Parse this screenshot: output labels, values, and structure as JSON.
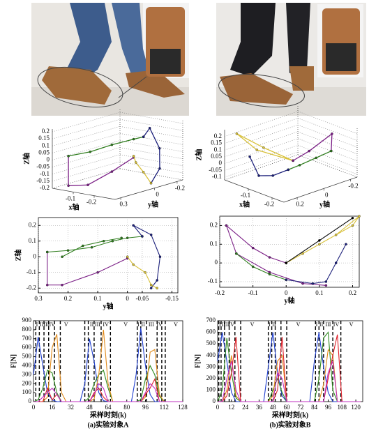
{
  "chart_data": [
    {
      "type": "line3d",
      "xlabel": "x轴",
      "ylabel": "y轴",
      "zlabel": "Z轴",
      "xlim": [
        0,
        -0.3
      ],
      "ylim": [
        0.35,
        -0.25
      ],
      "zlim": [
        -0.2,
        0.22
      ],
      "xticks": [
        -0.1,
        -0.2
      ],
      "yticks": [
        0.3,
        0,
        -0.2
      ],
      "zticks": [
        0.2,
        0.15,
        0.1,
        0.05,
        0,
        -0.05,
        -0.1,
        -0.15,
        -0.2
      ],
      "grid": true,
      "series": [
        {
          "color": "#7b1f86",
          "x": [
            -0.05,
            -0.05,
            -0.1,
            -0.15,
            -0.2
          ],
          "y": [
            0.3,
            0.3,
            0.22,
            0.1,
            0.0
          ],
          "z": [
            0.03,
            -0.18,
            -0.18,
            -0.1,
            -0.01
          ]
        },
        {
          "color": "#2f7d1e",
          "x": [
            -0.05,
            -0.1,
            -0.15,
            -0.2,
            -0.22
          ],
          "y": [
            0.3,
            0.2,
            0.1,
            0.0,
            -0.05
          ],
          "z": [
            0.03,
            0.05,
            0.09,
            0.12,
            0.13
          ]
        },
        {
          "color": "#1b1f7a",
          "x": [
            -0.22,
            -0.25,
            -0.27,
            -0.26,
            -0.24
          ],
          "y": [
            -0.05,
            -0.05,
            -0.1,
            -0.12,
            -0.08
          ],
          "z": [
            0.13,
            0.2,
            0.05,
            -0.1,
            -0.2
          ]
        },
        {
          "color": "#d8c13a",
          "x": [
            -0.24,
            -0.22,
            -0.2,
            -0.2
          ],
          "y": [
            -0.08,
            -0.05,
            -0.02,
            0.0
          ],
          "z": [
            -0.2,
            -0.12,
            -0.05,
            0.0
          ]
        }
      ]
    },
    {
      "type": "line3d",
      "xlabel": "x轴",
      "ylabel": "y轴",
      "zlabel": "Z轴",
      "xlim": [
        0,
        -0.25
      ],
      "ylim": [
        0.3,
        -0.25
      ],
      "zlim": [
        -0.12,
        0.25
      ],
      "xticks": [
        -0.1,
        -0.2
      ],
      "yticks": [
        0.2,
        0,
        -0.2
      ],
      "zticks": [
        0.2,
        0.15,
        0.1,
        0.05,
        0,
        -0.05,
        -0.1
      ],
      "grid": true,
      "series": [
        {
          "color": "#d8c13a",
          "x": [
            -0.12,
            -0.08,
            -0.04,
            -0.08,
            -0.12
          ],
          "y": [
            0.0,
            0.2,
            0.28,
            0.15,
            0.0
          ],
          "z": [
            0.0,
            0.12,
            0.24,
            0.12,
            0.0
          ]
        },
        {
          "color": "#7b1f86",
          "x": [
            -0.12,
            -0.16,
            -0.2,
            -0.18
          ],
          "y": [
            0.0,
            -0.05,
            -0.15,
            -0.18
          ],
          "z": [
            0.0,
            0.08,
            0.2,
            0.05
          ]
        },
        {
          "color": "#2f7d1e",
          "x": [
            -0.18,
            -0.15,
            -0.12,
            -0.1
          ],
          "y": [
            -0.18,
            -0.12,
            -0.05,
            0.0
          ],
          "z": [
            0.05,
            0.0,
            -0.05,
            -0.08
          ]
        },
        {
          "color": "#1b1f7a",
          "x": [
            -0.1,
            -0.08,
            -0.06,
            -0.05
          ],
          "y": [
            0.0,
            0.08,
            0.15,
            0.2
          ],
          "z": [
            -0.08,
            -0.11,
            -0.1,
            0.05
          ]
        }
      ]
    },
    {
      "type": "line",
      "xlabel": "y轴",
      "ylabel": "Z轴",
      "xlim": [
        0.3,
        -0.17
      ],
      "ylim": [
        -0.23,
        0.25
      ],
      "xticks": [
        0.3,
        0.2,
        0.1,
        0,
        -0.05,
        -0.15
      ],
      "yticks": [
        -0.2,
        -0.1,
        0,
        0.1,
        0.2
      ],
      "grid": true,
      "markers": true,
      "series": [
        {
          "color": "#7b1f86",
          "x": [
            0.27,
            0.27,
            0.22,
            0.1,
            0.0
          ],
          "values": [
            0.03,
            -0.18,
            -0.18,
            -0.1,
            -0.01
          ]
        },
        {
          "color": "#2f7d1e",
          "x": [
            0.27,
            0.2,
            0.12,
            0.05,
            0.0,
            -0.05
          ],
          "values": [
            0.03,
            0.04,
            0.06,
            0.1,
            0.12,
            0.13
          ]
        },
        {
          "color": "#2f7d1e",
          "x": [
            0.22,
            0.15,
            0.08,
            0.02
          ],
          "values": [
            0.0,
            0.07,
            0.1,
            0.12
          ]
        },
        {
          "color": "#1b1f7a",
          "x": [
            -0.05,
            -0.02,
            -0.08,
            -0.11,
            -0.1,
            -0.08
          ],
          "values": [
            0.13,
            0.2,
            0.14,
            0.0,
            -0.15,
            -0.2
          ]
        },
        {
          "color": "#d8c13a",
          "x": [
            -0.1,
            -0.08,
            -0.06,
            -0.02,
            0.0
          ],
          "values": [
            -0.2,
            -0.18,
            -0.1,
            -0.05,
            0.0
          ]
        }
      ]
    },
    {
      "type": "line",
      "xlabel": "y轴",
      "xlim": [
        -0.2,
        0.22
      ],
      "ylim": [
        -0.13,
        0.25
      ],
      "xticks": [
        -0.2,
        -0.1,
        0,
        0.1,
        0.2
      ],
      "yticks": [
        -0.1,
        0,
        0.1,
        0.2
      ],
      "grid": true,
      "markers": true,
      "series": [
        {
          "color": "#7b1f86",
          "x": [
            -0.18,
            -0.1,
            -0.05,
            0.0
          ],
          "values": [
            0.2,
            0.08,
            0.03,
            0.0
          ]
        },
        {
          "color": "#7b1f86",
          "x": [
            -0.18,
            -0.15,
            -0.05,
            0.05,
            0.12
          ],
          "values": [
            0.2,
            0.05,
            -0.05,
            -0.11,
            -0.12
          ]
        },
        {
          "color": "#2f7d1e",
          "x": [
            -0.15,
            -0.1,
            -0.05,
            0.0
          ],
          "values": [
            0.05,
            -0.02,
            -0.06,
            -0.09
          ]
        },
        {
          "color": "#1b1f7a",
          "x": [
            0.0,
            0.08,
            0.12,
            0.15,
            0.18
          ],
          "values": [
            -0.09,
            -0.11,
            -0.1,
            0.0,
            0.1
          ]
        },
        {
          "color": "#d8c13a",
          "x": [
            0.0,
            0.1,
            0.2,
            0.22,
            0.15,
            0.05,
            0.0
          ],
          "values": [
            0.0,
            0.1,
            0.2,
            0.25,
            0.15,
            0.05,
            0.0
          ]
        },
        {
          "color": "#000000",
          "x": [
            0.0,
            0.1,
            0.2
          ],
          "values": [
            0.0,
            0.12,
            0.24
          ]
        }
      ]
    },
    {
      "type": "line",
      "xlabel": "采样时刻(k)",
      "ylabel": "F[N]",
      "caption": "(a)实验对象A",
      "xlim": [
        0,
        128
      ],
      "ylim": [
        0,
        900
      ],
      "xticks": [
        0,
        16,
        32,
        48,
        64,
        80,
        96,
        112,
        128
      ],
      "yticks": [
        0,
        100,
        200,
        300,
        400,
        500,
        600,
        700,
        800,
        900
      ],
      "x": [
        0,
        4,
        8,
        12,
        16,
        20,
        24,
        28,
        32,
        36,
        40,
        44,
        48,
        52,
        56,
        60,
        64,
        68,
        72,
        76,
        80,
        84,
        88,
        92,
        96,
        100,
        104,
        108,
        112,
        116,
        120,
        124,
        128
      ],
      "phase_lines": [
        2,
        5,
        9,
        13,
        18,
        23,
        44,
        47,
        52,
        58,
        66,
        89,
        92,
        97,
        106,
        110,
        113
      ],
      "phases": [
        {
          "label": "I",
          "x": 3
        },
        {
          "label": "II",
          "x": 7
        },
        {
          "label": "III",
          "x": 11
        },
        {
          "label": "IV",
          "x": 16
        },
        {
          "label": "V",
          "x": 28
        },
        {
          "label": "II",
          "x": 50
        },
        {
          "label": "III",
          "x": 55
        },
        {
          "label": "IV",
          "x": 62
        },
        {
          "label": "V",
          "x": 79
        },
        {
          "label": "I",
          "x": 90
        },
        {
          "label": "II",
          "x": 94
        },
        {
          "label": "III",
          "x": 101
        },
        {
          "label": "IV",
          "x": 108
        },
        {
          "label": "V",
          "x": 122
        }
      ],
      "series": [
        {
          "color": "#1f3fd0",
          "values": [
            300,
            720,
            400,
            100,
            20,
            0,
            0,
            0,
            0,
            0,
            0,
            200,
            700,
            450,
            100,
            10,
            0,
            0,
            0,
            0,
            0,
            0,
            300,
            820,
            400,
            80,
            0,
            0,
            0,
            0,
            0,
            0,
            0
          ]
        },
        {
          "color": "#2f8a1e",
          "values": [
            0,
            20,
            150,
            350,
            320,
            100,
            0,
            0,
            0,
            0,
            0,
            0,
            50,
            200,
            300,
            350,
            150,
            0,
            0,
            0,
            0,
            0,
            0,
            20,
            250,
            400,
            300,
            60,
            0,
            0,
            0,
            0,
            0
          ]
        },
        {
          "color": "#e08a1a",
          "values": [
            0,
            0,
            0,
            50,
            600,
            750,
            100,
            0,
            0,
            0,
            0,
            0,
            0,
            30,
            300,
            800,
            200,
            0,
            0,
            0,
            0,
            0,
            0,
            0,
            50,
            550,
            580,
            80,
            0,
            0,
            0,
            0,
            0
          ]
        },
        {
          "color": "#e0202a",
          "values": [
            0,
            0,
            0,
            150,
            20,
            80,
            0,
            0,
            0,
            0,
            0,
            0,
            0,
            100,
            150,
            50,
            0,
            0,
            0,
            0,
            0,
            0,
            0,
            0,
            80,
            150,
            250,
            0,
            0,
            0,
            0,
            0,
            0
          ]
        },
        {
          "color": "#c030c0",
          "values": [
            0,
            0,
            50,
            100,
            150,
            80,
            0,
            0,
            0,
            0,
            0,
            0,
            0,
            80,
            200,
            150,
            0,
            0,
            0,
            0,
            0,
            0,
            0,
            0,
            100,
            200,
            150,
            0,
            0,
            0,
            0,
            0,
            0
          ]
        }
      ]
    },
    {
      "type": "line",
      "xlabel": "采样时刻(k)",
      "ylabel": "F[N]",
      "caption": "(b)实验对象B",
      "xlim": [
        0,
        126
      ],
      "ylim": [
        0,
        700
      ],
      "xticks": [
        0,
        12,
        24,
        36,
        48,
        60,
        72,
        84,
        96,
        108,
        120
      ],
      "yticks": [
        0,
        100,
        200,
        300,
        400,
        500,
        600,
        700
      ],
      "x": [
        0,
        4,
        8,
        12,
        16,
        20,
        24,
        28,
        32,
        36,
        40,
        44,
        48,
        52,
        56,
        60,
        64,
        68,
        72,
        76,
        80,
        84,
        88,
        92,
        96,
        100,
        104,
        108,
        112,
        116,
        120,
        124
      ],
      "phase_lines": [
        1,
        3,
        6,
        10,
        15,
        20,
        44,
        47,
        50,
        55,
        60,
        85,
        88,
        92,
        100,
        107
      ],
      "phases": [
        {
          "label": "I",
          "x": 2
        },
        {
          "label": "II",
          "x": 5
        },
        {
          "label": "III",
          "x": 8
        },
        {
          "label": "IV",
          "x": 12
        },
        {
          "label": "V",
          "x": 30
        },
        {
          "label": "I",
          "x": 45
        },
        {
          "label": "II",
          "x": 49
        },
        {
          "label": "V",
          "x": 70
        },
        {
          "label": "I",
          "x": 86
        },
        {
          "label": "II",
          "x": 90
        },
        {
          "label": "III",
          "x": 96
        },
        {
          "label": "IV",
          "x": 103
        },
        {
          "label": "V",
          "x": 116
        }
      ],
      "series": [
        {
          "color": "#1f3fd0",
          "values": [
            350,
            600,
            350,
            80,
            0,
            0,
            0,
            0,
            0,
            0,
            0,
            300,
            600,
            250,
            50,
            0,
            0,
            0,
            0,
            0,
            0,
            350,
            600,
            300,
            80,
            0,
            0,
            0,
            0,
            0,
            0,
            0
          ]
        },
        {
          "color": "#2f8a1e",
          "values": [
            0,
            100,
            550,
            250,
            30,
            0,
            0,
            0,
            0,
            0,
            0,
            0,
            100,
            200,
            80,
            0,
            0,
            0,
            0,
            0,
            0,
            0,
            200,
            550,
            600,
            100,
            0,
            0,
            0,
            0,
            0,
            0
          ]
        },
        {
          "color": "#e08a1a",
          "values": [
            0,
            0,
            100,
            400,
            50,
            0,
            0,
            0,
            0,
            0,
            0,
            0,
            50,
            350,
            400,
            0,
            0,
            0,
            0,
            0,
            0,
            0,
            0,
            150,
            450,
            400,
            0,
            0,
            0,
            0,
            0,
            0
          ]
        },
        {
          "color": "#e0202a",
          "values": [
            0,
            0,
            50,
            250,
            560,
            0,
            0,
            0,
            0,
            0,
            0,
            0,
            0,
            100,
            560,
            0,
            0,
            0,
            0,
            0,
            0,
            0,
            0,
            0,
            200,
            400,
            580,
            0,
            0,
            0,
            0,
            0
          ]
        },
        {
          "color": "#c030c0",
          "values": [
            0,
            0,
            200,
            350,
            100,
            0,
            0,
            0,
            0,
            0,
            0,
            0,
            0,
            250,
            200,
            0,
            0,
            0,
            0,
            0,
            0,
            0,
            0,
            0,
            250,
            350,
            0,
            0,
            0,
            0,
            0,
            0
          ]
        }
      ]
    }
  ]
}
